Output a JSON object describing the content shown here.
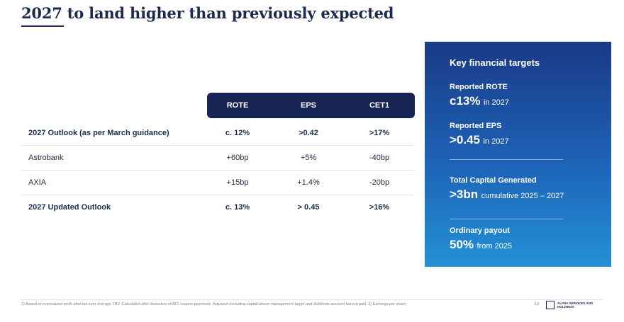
{
  "title": "2027 to land higher than previously expected",
  "table": {
    "columns": [
      "ROTE",
      "EPS",
      "CET1"
    ],
    "rows": [
      {
        "label": "2027 Outlook (as per March guidance)",
        "values": [
          "c. 12%",
          ">0.42",
          ">17%"
        ],
        "bold": true
      },
      {
        "label": "Astrobank",
        "values": [
          "+60bp",
          "+5%",
          "-40bp"
        ],
        "bold": false
      },
      {
        "label": "AXIA",
        "values": [
          "+15bp",
          "+1.4%",
          "-20bp"
        ],
        "bold": false
      },
      {
        "label": "2027 Updated Outlook",
        "values": [
          "c. 13%",
          "> 0.45",
          ">16%"
        ],
        "bold": true
      }
    ]
  },
  "panel": {
    "title": "Key financial targets",
    "items": [
      {
        "label": "Reported ROTE",
        "value": "c13%",
        "suffix": "in 2027"
      },
      {
        "label": "Reported EPS",
        "value": ">0.45",
        "suffix": "in 2027"
      },
      {
        "label": "Total Capital Generated",
        "value": ">3bn",
        "suffix": "cumulative 2025 – 2027"
      },
      {
        "label": "Ordinary payout",
        "value": "50%",
        "suffix": "from 2025"
      }
    ]
  },
  "footer": {
    "footnote": "1) Based on normalized profit after tax over average TBV. Calculated after deduction of AT1 coupon payments. Adjusted excluding capital above management target and dividends accrued but not paid. 2) Earnings per share;",
    "page_number": "10",
    "logo_text": "ALPHA SERVICES AND HOLDINGS"
  },
  "colors": {
    "navy": "#172554",
    "panel_top": "#1a3a86",
    "panel_bottom": "#2391d6"
  }
}
